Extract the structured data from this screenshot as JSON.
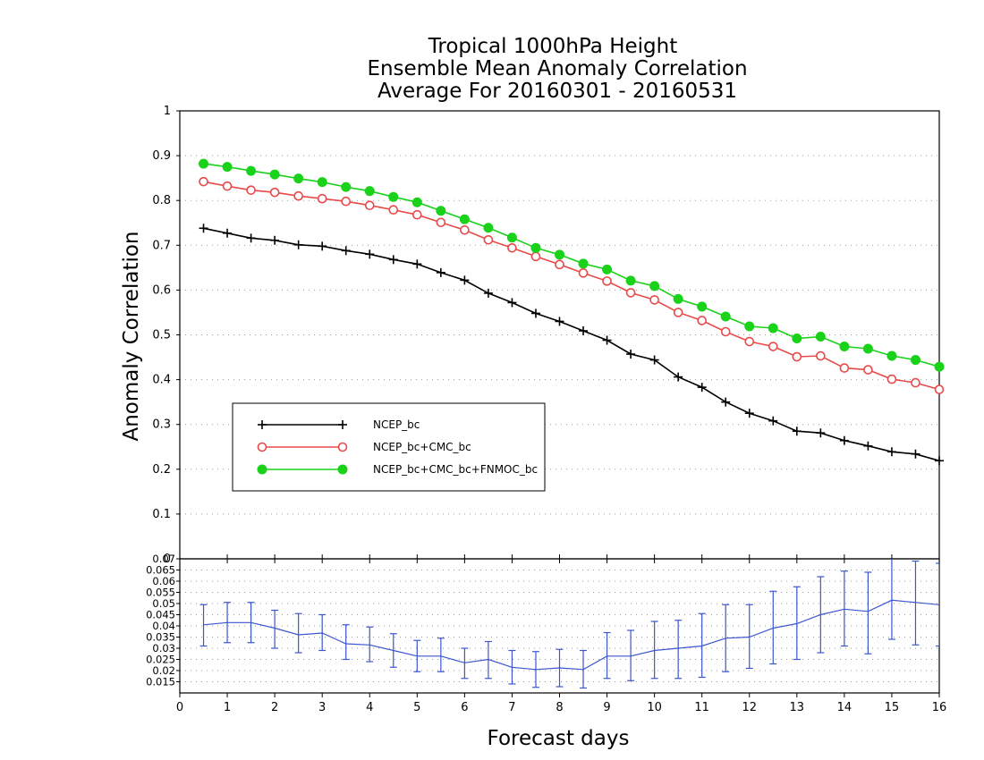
{
  "chart_data": {
    "type": "line",
    "title_lines": [
      "Tropical 1000hPa Height",
      "Ensemble Mean Anomaly Correlation",
      "Average For 20160301 - 20160531"
    ],
    "ylabel": "Anomaly Correlation",
    "xlabel": "Forecast days",
    "xlim": [
      0,
      16
    ],
    "x_ticks": [
      "0",
      "1",
      "2",
      "3",
      "4",
      "5",
      "6",
      "7",
      "8",
      "9",
      "10",
      "11",
      "12",
      "13",
      "14",
      "15",
      "16"
    ],
    "top_panel": {
      "ylim": [
        0,
        1
      ],
      "y_ticks": [
        "0",
        "0.1",
        "0.2",
        "0.3",
        "0.4",
        "0.5",
        "0.6",
        "0.7",
        "0.8",
        "0.9",
        "1"
      ],
      "grid": true,
      "legend_position": "lower-left",
      "x": [
        0.5,
        1,
        1.5,
        2,
        2.5,
        3,
        3.5,
        4,
        4.5,
        5,
        5.5,
        6,
        6.5,
        7,
        7.5,
        8,
        8.5,
        9,
        9.5,
        10,
        10.5,
        11,
        11.5,
        12,
        12.5,
        13,
        13.5,
        14,
        14.5,
        15,
        15.5,
        16
      ],
      "series": [
        {
          "name": "NCEP_bc",
          "color": "#000000",
          "marker": "plus",
          "values": [
            0.738,
            0.727,
            0.716,
            0.711,
            0.701,
            0.698,
            0.688,
            0.68,
            0.668,
            0.658,
            0.639,
            0.622,
            0.593,
            0.572,
            0.548,
            0.53,
            0.509,
            0.488,
            0.457,
            0.444,
            0.406,
            0.383,
            0.35,
            0.325,
            0.308,
            0.285,
            0.281,
            0.264,
            0.252,
            0.239,
            0.234,
            0.219
          ]
        },
        {
          "name": "NCEP_bc+CMC_bc",
          "color": "#e84a4a",
          "marker": "open-circle",
          "values": [
            0.842,
            0.832,
            0.823,
            0.818,
            0.81,
            0.804,
            0.798,
            0.789,
            0.779,
            0.768,
            0.751,
            0.734,
            0.712,
            0.694,
            0.675,
            0.657,
            0.638,
            0.62,
            0.594,
            0.578,
            0.55,
            0.532,
            0.507,
            0.485,
            0.474,
            0.451,
            0.453,
            0.426,
            0.422,
            0.401,
            0.393,
            0.378
          ]
        },
        {
          "name": "NCEP_bc+CMC_bc+FNMOC_bc",
          "color": "#19d219",
          "marker": "filled-circle",
          "values": [
            0.882,
            0.875,
            0.866,
            0.858,
            0.849,
            0.841,
            0.83,
            0.821,
            0.808,
            0.796,
            0.777,
            0.758,
            0.739,
            0.717,
            0.694,
            0.679,
            0.659,
            0.646,
            0.621,
            0.609,
            0.58,
            0.563,
            0.541,
            0.519,
            0.515,
            0.492,
            0.496,
            0.474,
            0.469,
            0.453,
            0.444,
            0.429
          ]
        }
      ]
    },
    "bottom_panel": {
      "type": "line-errorbar",
      "ylim": [
        0.01,
        0.07
      ],
      "y_ticks": [
        "0.015",
        "0.02",
        "0.025",
        "0.03",
        "0.035",
        "0.04",
        "0.045",
        "0.05",
        "0.055",
        "0.06",
        "0.065",
        "0.07"
      ],
      "grid": true,
      "color": "#3b56cf",
      "x": [
        0.5,
        1,
        1.5,
        2,
        2.5,
        3,
        3.5,
        4,
        4.5,
        5,
        5.5,
        6,
        6.5,
        7,
        7.5,
        8,
        8.5,
        9,
        9.5,
        10,
        10.5,
        11,
        11.5,
        12,
        12.5,
        13,
        13.5,
        14,
        14.5,
        15,
        15.5,
        16
      ],
      "values": [
        0.0405,
        0.0415,
        0.0415,
        0.039,
        0.036,
        0.0368,
        0.032,
        0.0315,
        0.029,
        0.0265,
        0.0265,
        0.0235,
        0.025,
        0.0215,
        0.0205,
        0.0212,
        0.0205,
        0.0265,
        0.0265,
        0.029,
        0.03,
        0.031,
        0.0345,
        0.035,
        0.039,
        0.041,
        0.045,
        0.0475,
        0.0465,
        0.0515,
        0.0505,
        0.0495
      ],
      "lower": [
        0.031,
        0.0325,
        0.0325,
        0.03,
        0.028,
        0.029,
        0.025,
        0.024,
        0.0215,
        0.0195,
        0.0195,
        0.0165,
        0.0165,
        0.014,
        0.0125,
        0.0128,
        0.0122,
        0.0165,
        0.0155,
        0.0165,
        0.0165,
        0.017,
        0.0195,
        0.021,
        0.023,
        0.025,
        0.028,
        0.031,
        0.0275,
        0.034,
        0.0315,
        0.031
      ],
      "upper": [
        0.0495,
        0.0505,
        0.0505,
        0.047,
        0.0455,
        0.045,
        0.0405,
        0.0395,
        0.0365,
        0.0335,
        0.0345,
        0.03,
        0.033,
        0.029,
        0.0285,
        0.0295,
        0.029,
        0.037,
        0.038,
        0.042,
        0.0425,
        0.0455,
        0.0495,
        0.0495,
        0.0555,
        0.0575,
        0.062,
        0.0645,
        0.064,
        0.071,
        0.069,
        0.068
      ]
    }
  }
}
